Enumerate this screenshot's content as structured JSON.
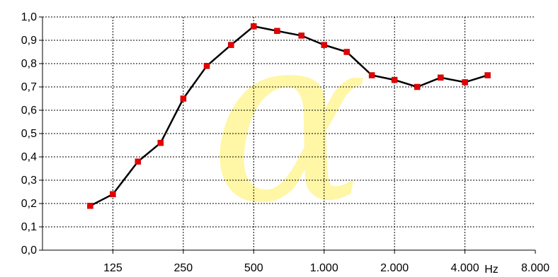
{
  "chart_data": {
    "type": "line",
    "title": "",
    "xlabel": "",
    "ylabel": "",
    "x_unit_label": "Hz",
    "x_scale": "log2",
    "xlim": [
      62.5,
      8000
    ],
    "ylim": [
      0,
      1.0
    ],
    "grid": true,
    "legend": "none",
    "watermark_symbol": "α",
    "x_tick_labels": [
      {
        "value": 125,
        "label": "125"
      },
      {
        "value": 250,
        "label": "250"
      },
      {
        "value": 500,
        "label": "500"
      },
      {
        "value": 1000,
        "label": "1.000"
      },
      {
        "value": 2000,
        "label": "2.000"
      },
      {
        "value": 4000,
        "label": "4.000"
      },
      {
        "value": 8000,
        "label": "8.000"
      }
    ],
    "y_tick_labels": [
      {
        "value": 0.0,
        "label": "0,0"
      },
      {
        "value": 0.1,
        "label": "0,1"
      },
      {
        "value": 0.2,
        "label": "0,2"
      },
      {
        "value": 0.3,
        "label": "0,3"
      },
      {
        "value": 0.4,
        "label": "0,4"
      },
      {
        "value": 0.5,
        "label": "0,5"
      },
      {
        "value": 0.6,
        "label": "0,6"
      },
      {
        "value": 0.7,
        "label": "0,7"
      },
      {
        "value": 0.8,
        "label": "0,8"
      },
      {
        "value": 0.9,
        "label": "0,9"
      },
      {
        "value": 1.0,
        "label": "1,0"
      }
    ],
    "series": [
      {
        "color": "#e60000",
        "line_color": "#000000",
        "marker": "square",
        "x": [
          100,
          125,
          160,
          200,
          250,
          315,
          400,
          500,
          630,
          800,
          1000,
          1250,
          1600,
          2000,
          2500,
          3150,
          4000,
          5000
        ],
        "y": [
          0.19,
          0.24,
          0.38,
          0.46,
          0.65,
          0.79,
          0.88,
          0.96,
          0.94,
          0.92,
          0.88,
          0.85,
          0.75,
          0.73,
          0.7,
          0.74,
          0.72,
          0.75
        ]
      }
    ],
    "colors": {
      "watermark_fill": "#ffe600",
      "watermark_opacity": 0.35
    }
  }
}
